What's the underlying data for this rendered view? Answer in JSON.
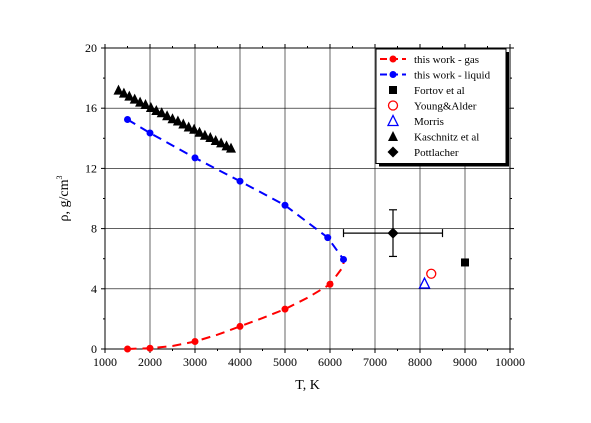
{
  "chart_data": {
    "type": "scatter",
    "xlabel": "T, K",
    "ylabel_main": "ρ, g/cm",
    "ylabel_sup": "3",
    "xlim": [
      1000,
      10000
    ],
    "ylim": [
      0,
      20
    ],
    "xticks": [
      1000,
      2000,
      3000,
      4000,
      5000,
      6000,
      7000,
      8000,
      9000,
      10000
    ],
    "yticks": [
      0,
      4,
      8,
      12,
      16,
      20
    ],
    "grid": true,
    "legend_position": "top-right",
    "series": [
      {
        "name": "this work - gas",
        "color": "#ff0000",
        "marker": "circle-filled",
        "line": "dashed",
        "points": [
          [
            1500,
            0.0
          ],
          [
            2000,
            0.05
          ],
          [
            3000,
            0.5
          ],
          [
            4000,
            1.5
          ],
          [
            5000,
            2.65
          ],
          [
            6000,
            4.3
          ]
        ],
        "curve": [
          [
            1500,
            0.0
          ],
          [
            2000,
            0.05
          ],
          [
            2500,
            0.2
          ],
          [
            3000,
            0.5
          ],
          [
            3500,
            0.95
          ],
          [
            4000,
            1.5
          ],
          [
            4500,
            2.05
          ],
          [
            5000,
            2.65
          ],
          [
            5500,
            3.4
          ],
          [
            6000,
            4.3
          ],
          [
            6300,
            5.5
          ],
          [
            6300,
            6.0
          ]
        ]
      },
      {
        "name": "this work - liquid",
        "color": "#0000ff",
        "marker": "circle-filled",
        "line": "dashed",
        "points": [
          [
            1500,
            15.25
          ],
          [
            2000,
            14.35
          ],
          [
            3000,
            12.7
          ],
          [
            4000,
            11.15
          ],
          [
            5000,
            9.55
          ],
          [
            5950,
            7.4
          ],
          [
            6300,
            5.95
          ]
        ],
        "curve": [
          [
            1500,
            15.25
          ],
          [
            2000,
            14.35
          ],
          [
            3000,
            12.7
          ],
          [
            4000,
            11.15
          ],
          [
            5000,
            9.55
          ],
          [
            5950,
            7.4
          ],
          [
            6300,
            5.95
          ]
        ]
      },
      {
        "name": "Fortov et al",
        "color": "#000000",
        "marker": "square-filled",
        "points": [
          [
            9000,
            5.75
          ]
        ]
      },
      {
        "name": "Young&Alder",
        "color": "#ff0000",
        "marker": "circle-open",
        "points": [
          [
            8250,
            5.0
          ]
        ]
      },
      {
        "name": "Morris",
        "color": "#0000ff",
        "marker": "triangle-open",
        "points": [
          [
            8100,
            4.35
          ]
        ]
      },
      {
        "name": "Kaschnitz et al",
        "color": "#000000",
        "marker": "triangle-filled",
        "points": [
          [
            1300,
            17.2
          ],
          [
            1420,
            17.0
          ],
          [
            1540,
            16.8
          ],
          [
            1660,
            16.6
          ],
          [
            1780,
            16.4
          ],
          [
            1900,
            16.25
          ],
          [
            2020,
            16.05
          ],
          [
            2140,
            15.85
          ],
          [
            2260,
            15.7
          ],
          [
            2380,
            15.5
          ],
          [
            2500,
            15.3
          ],
          [
            2620,
            15.15
          ],
          [
            2740,
            14.95
          ],
          [
            2860,
            14.75
          ],
          [
            2980,
            14.6
          ],
          [
            3100,
            14.4
          ],
          [
            3220,
            14.2
          ],
          [
            3340,
            14.05
          ],
          [
            3460,
            13.85
          ],
          [
            3580,
            13.7
          ],
          [
            3700,
            13.5
          ],
          [
            3800,
            13.35
          ]
        ]
      },
      {
        "name": "Pottlacher",
        "color": "#000000",
        "marker": "diamond-filled",
        "points": [
          [
            7400,
            7.7
          ]
        ],
        "xerr": [
          1100,
          1100
        ],
        "yerr": [
          1.55,
          1.55
        ]
      }
    ]
  }
}
